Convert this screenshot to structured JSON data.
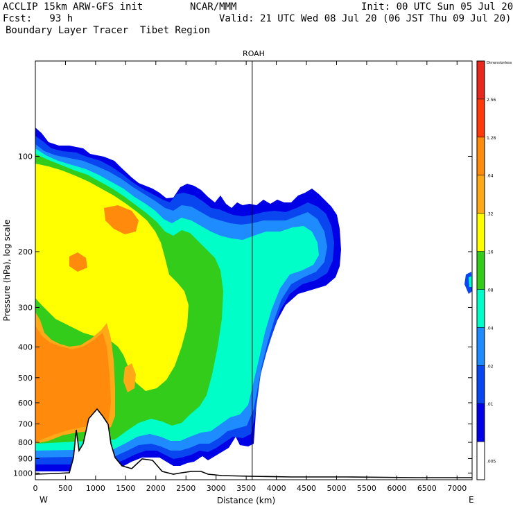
{
  "header": {
    "left_line1": "ACCLIP 15km ARW-GFS init",
    "left_line2": "Fcst:   93 h",
    "left_line3": "Boundary Layer Tracer  Tibet Region",
    "center_line1": "NCAR/MMM",
    "right_line1": "Init: 00 UTC Sun 05 Jul 20",
    "right_line2": "Valid: 21 UTC Wed 08 Jul 20 (06 JST Thu 09 Jul 20)"
  },
  "chart_data": {
    "type": "heatmap",
    "title": "ROAH",
    "xlabel": "Distance (km)",
    "ylabel": "Pressure (hPa), log scale",
    "x_edge_left": "W",
    "x_edge_right": "E",
    "xlim": [
      0,
      7250
    ],
    "ylim_hpa": [
      1050,
      50
    ],
    "x_ticks": [
      "0",
      "500",
      "1000",
      "1500",
      "2000",
      "2500",
      "3000",
      "3500",
      "4000",
      "4500",
      "5000",
      "5500",
      "6000",
      "6500",
      "7000"
    ],
    "y_ticks": [
      "100",
      "200",
      "300",
      "400",
      "500",
      "600",
      "700",
      "800",
      "900",
      "1000"
    ],
    "reference_line_x": 3600,
    "colorbar": {
      "unit_label": "Dimensionless",
      "labels": [
        "2.56",
        "1.28",
        ".64",
        ".32",
        ".16",
        ".08",
        ".04",
        ".02",
        ".01",
        ".005"
      ],
      "colors": [
        "#ff3a0a",
        "#ff8a0c",
        "#ffa818",
        "#ffff00",
        "#33cc1a",
        "#00ffc8",
        "#1e8cff",
        "#0a46f0",
        "#0000e6",
        "#ffffff"
      ]
    },
    "terrain_color": "#000000"
  }
}
